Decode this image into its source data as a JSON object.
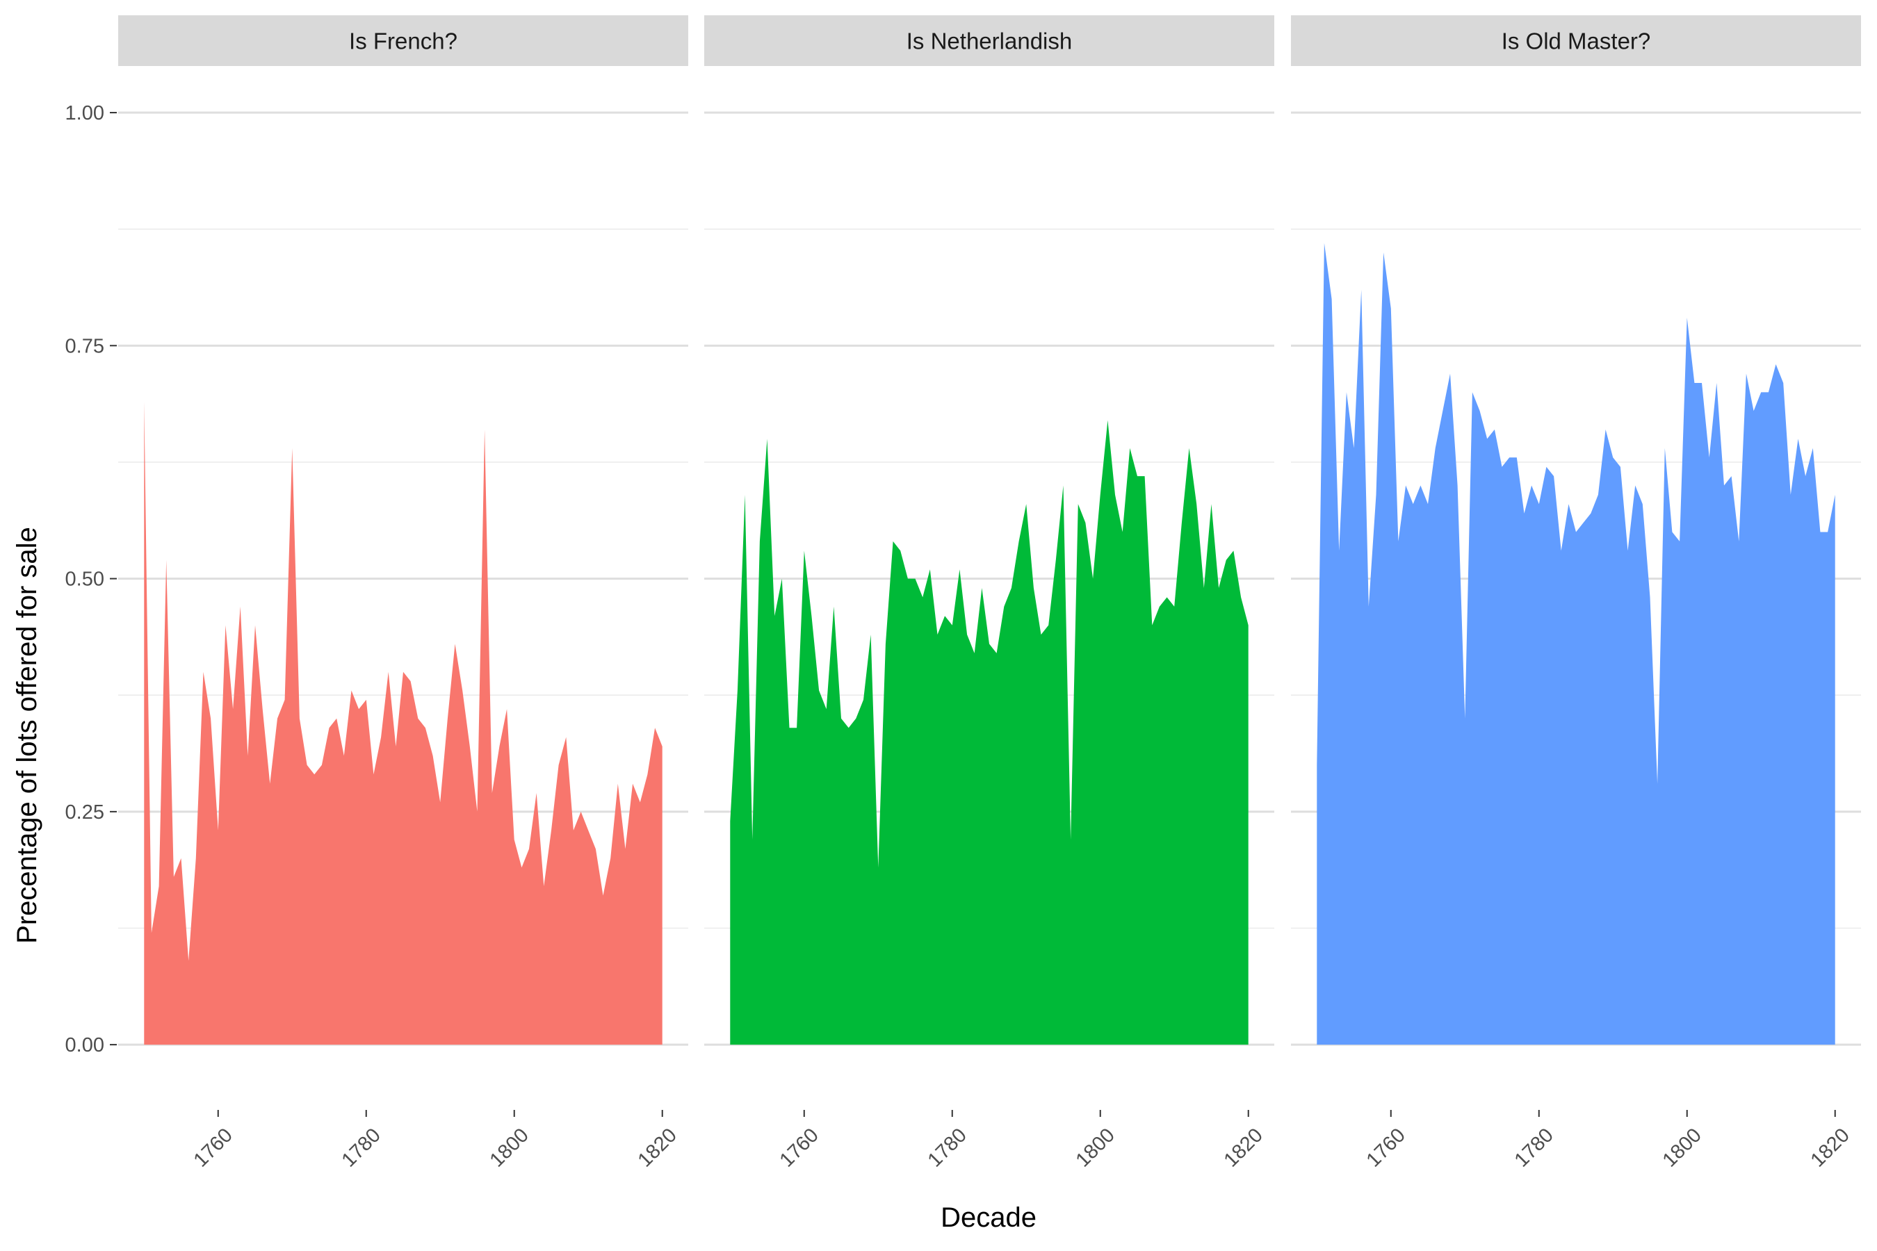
{
  "chart_data": {
    "type": "area",
    "xlabel": "Decade",
    "ylabel": "Precentage of lots offered for sale",
    "xlim": [
      1746.5,
      1823.5
    ],
    "ylim": [
      -0.07,
      1.05
    ],
    "x_ticks": [
      1760,
      1780,
      1800,
      1820
    ],
    "x_tick_labels": [
      "1760",
      "1780",
      "1800",
      "1820"
    ],
    "y_ticks": [
      0.0,
      0.25,
      0.5,
      0.75,
      1.0
    ],
    "y_tick_labels": [
      "0.00",
      "0.25",
      "0.50",
      "0.75",
      "1.00"
    ],
    "grid": true,
    "legend": "none",
    "x": [
      1750,
      1751,
      1752,
      1753,
      1754,
      1755,
      1756,
      1757,
      1758,
      1759,
      1760,
      1761,
      1762,
      1763,
      1764,
      1765,
      1766,
      1767,
      1768,
      1769,
      1770,
      1771,
      1772,
      1773,
      1774,
      1775,
      1776,
      1777,
      1778,
      1779,
      1780,
      1781,
      1782,
      1783,
      1784,
      1785,
      1786,
      1787,
      1788,
      1789,
      1790,
      1791,
      1792,
      1793,
      1794,
      1795,
      1796,
      1797,
      1798,
      1799,
      1800,
      1801,
      1802,
      1803,
      1804,
      1805,
      1806,
      1807,
      1808,
      1809,
      1810,
      1811,
      1812,
      1813,
      1814,
      1815,
      1816,
      1817,
      1818,
      1819,
      1820
    ],
    "panels": [
      {
        "title": "Is French?",
        "color": "#F8766D",
        "values": [
          0.69,
          0.12,
          0.17,
          0.52,
          0.18,
          0.2,
          0.09,
          0.2,
          0.4,
          0.35,
          0.23,
          0.45,
          0.36,
          0.47,
          0.31,
          0.45,
          0.36,
          0.28,
          0.35,
          0.37,
          0.64,
          0.35,
          0.3,
          0.29,
          0.3,
          0.34,
          0.35,
          0.31,
          0.38,
          0.36,
          0.37,
          0.29,
          0.33,
          0.4,
          0.32,
          0.4,
          0.39,
          0.35,
          0.34,
          0.31,
          0.26,
          0.35,
          0.43,
          0.38,
          0.32,
          0.25,
          0.66,
          0.27,
          0.32,
          0.36,
          0.22,
          0.19,
          0.21,
          0.27,
          0.17,
          0.23,
          0.3,
          0.33,
          0.23,
          0.25,
          0.23,
          0.21,
          0.16,
          0.2,
          0.28,
          0.21,
          0.28,
          0.26,
          0.29,
          0.34,
          0.32
        ]
      },
      {
        "title": "Is Netherlandish",
        "color": "#00BA38",
        "values": [
          0.24,
          0.38,
          0.59,
          0.22,
          0.54,
          0.65,
          0.46,
          0.5,
          0.34,
          0.34,
          0.53,
          0.46,
          0.38,
          0.36,
          0.47,
          0.35,
          0.34,
          0.35,
          0.37,
          0.44,
          0.19,
          0.43,
          0.54,
          0.53,
          0.5,
          0.5,
          0.48,
          0.51,
          0.44,
          0.46,
          0.45,
          0.51,
          0.44,
          0.42,
          0.49,
          0.43,
          0.42,
          0.47,
          0.49,
          0.54,
          0.58,
          0.49,
          0.44,
          0.45,
          0.52,
          0.6,
          0.22,
          0.58,
          0.56,
          0.5,
          0.59,
          0.67,
          0.59,
          0.55,
          0.64,
          0.61,
          0.61,
          0.45,
          0.47,
          0.48,
          0.47,
          0.56,
          0.64,
          0.58,
          0.49,
          0.58,
          0.49,
          0.52,
          0.53,
          0.48,
          0.45
        ]
      },
      {
        "title": "Is Old Master?",
        "color": "#619CFF",
        "values": [
          0.3,
          0.86,
          0.8,
          0.53,
          0.7,
          0.64,
          0.81,
          0.47,
          0.59,
          0.85,
          0.79,
          0.54,
          0.6,
          0.58,
          0.6,
          0.58,
          0.64,
          0.68,
          0.72,
          0.6,
          0.35,
          0.7,
          0.68,
          0.65,
          0.66,
          0.62,
          0.63,
          0.63,
          0.57,
          0.6,
          0.58,
          0.62,
          0.61,
          0.53,
          0.58,
          0.55,
          0.56,
          0.57,
          0.59,
          0.66,
          0.63,
          0.62,
          0.53,
          0.6,
          0.58,
          0.48,
          0.28,
          0.64,
          0.55,
          0.54,
          0.78,
          0.71,
          0.71,
          0.63,
          0.71,
          0.6,
          0.61,
          0.54,
          0.72,
          0.68,
          0.7,
          0.7,
          0.73,
          0.71,
          0.59,
          0.65,
          0.61,
          0.64,
          0.55,
          0.55,
          0.59
        ]
      }
    ]
  }
}
